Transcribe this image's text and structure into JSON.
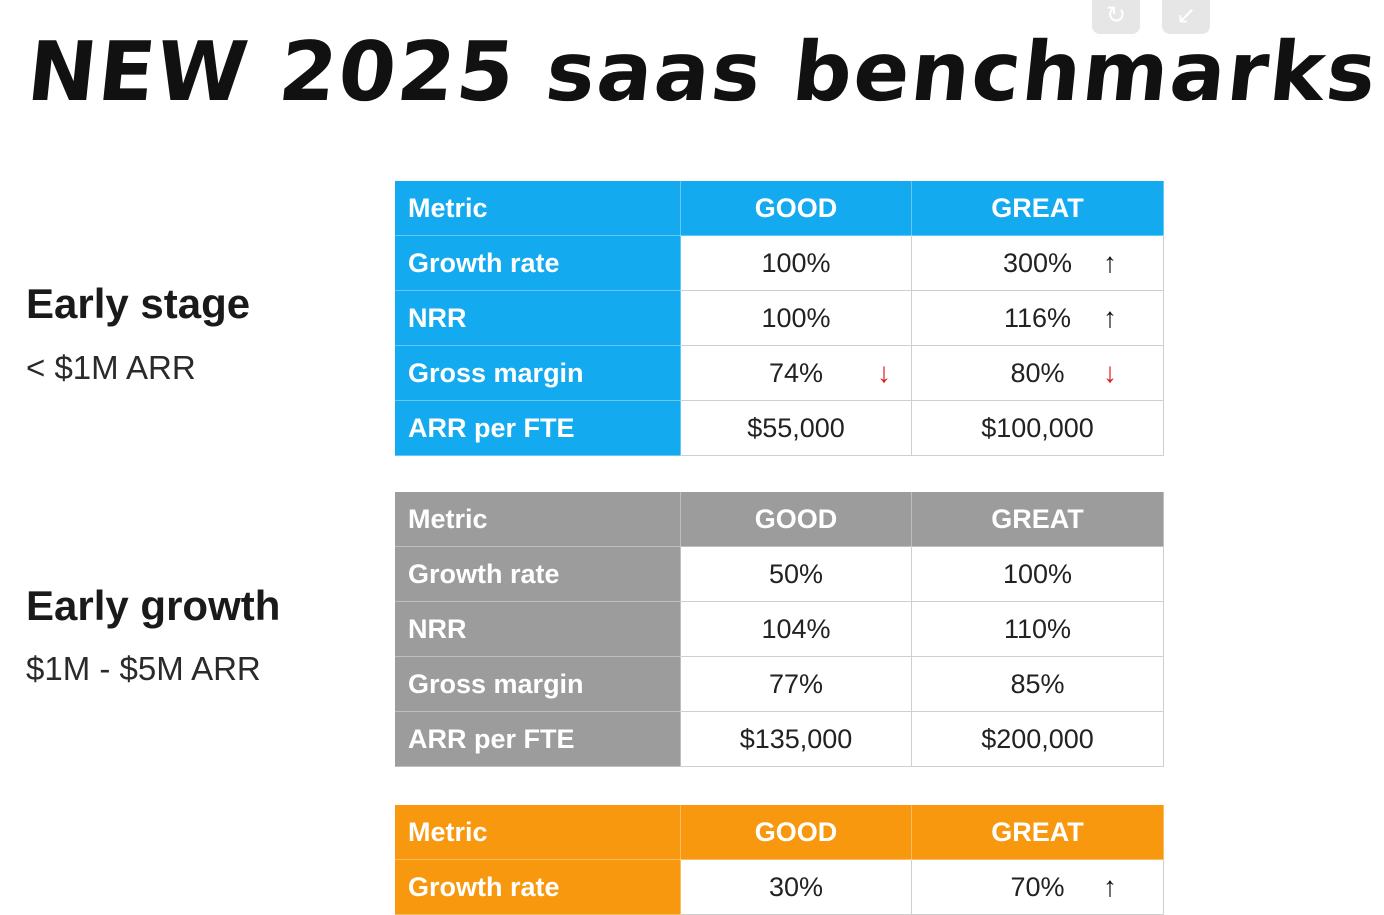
{
  "title": "NEW 2025 saas benchmarks",
  "controls": {
    "refresh_icon": "refresh-icon",
    "collapse_icon": "collapse-icon"
  },
  "header": {
    "metric": "Metric",
    "good": "GOOD",
    "great": "GREAT"
  },
  "colors": {
    "early_stage": "#14aaf0",
    "early_growth": "#9c9c9c",
    "third": "#f7980f",
    "down_arrow": "#e01b1b"
  },
  "sections": [
    {
      "label": "Early stage",
      "sub": "< $1M ARR",
      "rows": [
        {
          "metric": "Growth rate",
          "good": "100%",
          "great": "300%",
          "good_arrow": "",
          "great_arrow": "↑"
        },
        {
          "metric": "NRR",
          "good": "100%",
          "great": "116%",
          "good_arrow": "",
          "great_arrow": "↑"
        },
        {
          "metric": "Gross margin",
          "good": "74%",
          "great": "80%",
          "good_arrow": "↓",
          "great_arrow": "↓"
        },
        {
          "metric": "ARR per FTE",
          "good": "$55,000",
          "great": "$100,000",
          "good_arrow": "",
          "great_arrow": ""
        }
      ]
    },
    {
      "label": "Early growth",
      "sub": "$1M - $5M ARR",
      "rows": [
        {
          "metric": "Growth rate",
          "good": "50%",
          "great": "100%",
          "good_arrow": "",
          "great_arrow": ""
        },
        {
          "metric": "NRR",
          "good": "104%",
          "great": "110%",
          "good_arrow": "",
          "great_arrow": ""
        },
        {
          "metric": "Gross margin",
          "good": "77%",
          "great": "85%",
          "good_arrow": "",
          "great_arrow": ""
        },
        {
          "metric": "ARR per FTE",
          "good": "$135,000",
          "great": "$200,000",
          "good_arrow": "",
          "great_arrow": ""
        }
      ]
    },
    {
      "rows": [
        {
          "metric": "Growth rate",
          "good": "30%",
          "great": "70%",
          "good_arrow": "",
          "great_arrow": "↑"
        }
      ]
    }
  ]
}
